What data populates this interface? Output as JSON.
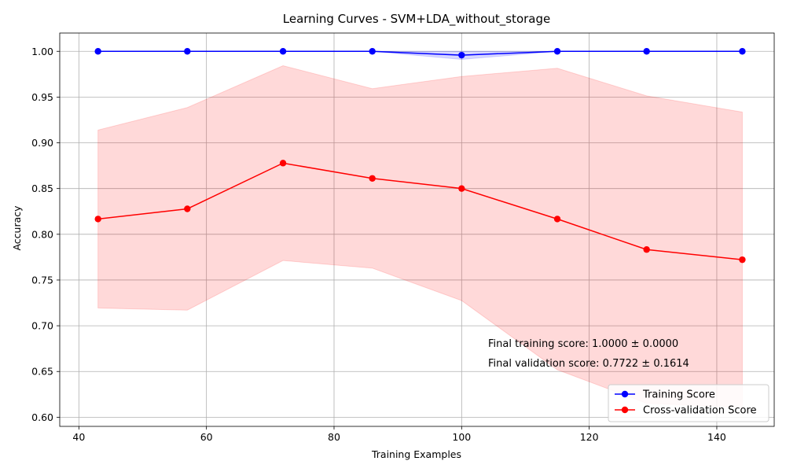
{
  "chart_data": {
    "type": "line",
    "title": "Learning Curves - SVM+LDA_without_storage",
    "xlabel": "Training Examples",
    "ylabel": "Accuracy",
    "xlim": [
      37,
      149
    ],
    "ylim": [
      0.59,
      1.02
    ],
    "xticks": [
      40,
      60,
      80,
      100,
      120,
      140
    ],
    "xtick_labels": [
      "40",
      "60",
      "80",
      "100",
      "120",
      "140"
    ],
    "yticks": [
      0.6,
      0.65,
      0.7,
      0.75,
      0.8,
      0.85,
      0.9,
      0.95,
      1.0
    ],
    "ytick_labels": [
      "0.60",
      "0.65",
      "0.70",
      "0.75",
      "0.80",
      "0.85",
      "0.90",
      "0.95",
      "1.00"
    ],
    "grid": true,
    "legend_position": "lower-right",
    "x": [
      43,
      57,
      72,
      86,
      100,
      115,
      129,
      144
    ],
    "series": [
      {
        "name": "Training Score",
        "color": "#0000ff",
        "band_color": "#0000ff",
        "values": [
          1.0,
          1.0,
          1.0,
          1.0,
          0.9958,
          1.0,
          1.0,
          1.0
        ],
        "band_lower": [
          1.0,
          1.0,
          1.0,
          1.0,
          0.9912,
          1.0,
          1.0,
          1.0
        ],
        "band_upper": [
          1.0,
          1.0,
          1.0,
          1.0,
          1.0,
          1.0,
          1.0,
          1.0
        ]
      },
      {
        "name": "Cross-validation Score",
        "color": "#ff0000",
        "band_color": "#ff0000",
        "values": [
          0.8167,
          0.8278,
          0.8778,
          0.8611,
          0.85,
          0.8167,
          0.7833,
          0.7722
        ],
        "band_lower": [
          0.7194,
          0.7171,
          0.7713,
          0.763,
          0.7275,
          0.6519,
          0.6153,
          0.6108
        ],
        "band_upper": [
          0.9139,
          0.9385,
          0.9843,
          0.9592,
          0.9725,
          0.9815,
          0.9513,
          0.9336
        ]
      }
    ],
    "annotations": [
      "Final training score: 1.0000 ± 0.0000",
      "Final validation score: 0.7722 ± 0.1614"
    ]
  }
}
